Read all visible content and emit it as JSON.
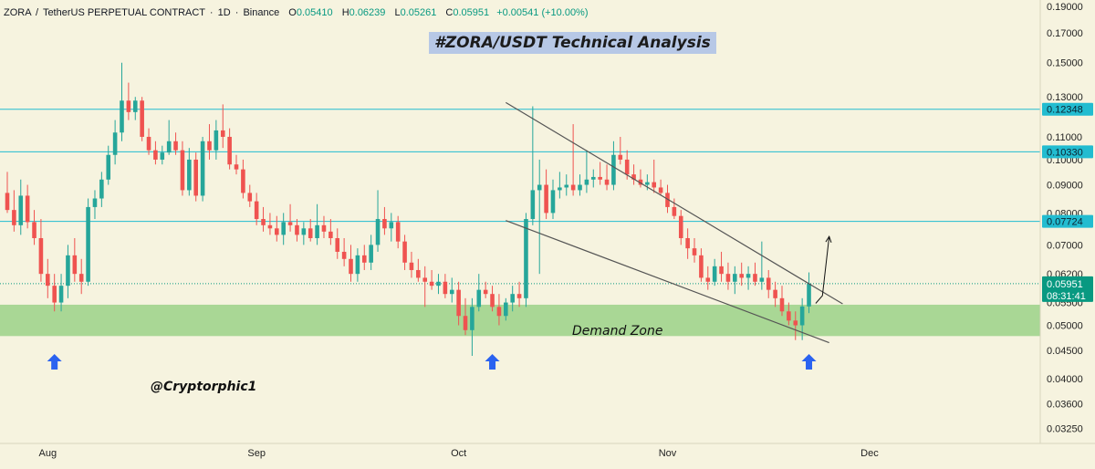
{
  "header": {
    "symbol": "ZORA",
    "pair": "TetherUS PERPETUAL CONTRACT",
    "interval": "1D",
    "exchange": "Binance",
    "ohlc": [
      {
        "label": "O",
        "value": "0.05410"
      },
      {
        "label": "H",
        "value": "0.06239"
      },
      {
        "label": "L",
        "value": "0.05261"
      },
      {
        "label": "C",
        "value": "0.05951"
      }
    ],
    "change": "+0.00541 (+10.00%)"
  },
  "title": "#ZORA/USDT Technical Analysis",
  "watermark": "@Cryptorphic1",
  "demand_zone_label": "Demand Zone",
  "colors": {
    "background": "#f6f3df",
    "bull": "#26a69a",
    "bear": "#ef5350",
    "level_line": "#22bcd0",
    "level_tag": "#22bcd0",
    "price_tag": "#089981",
    "demand_zone": "#a4d590",
    "trendline": "#555555",
    "arrow_marker": "#2a62f0"
  },
  "price_tag": {
    "value": "0.05951",
    "countdown": "08:31:41"
  },
  "chart_data": {
    "type": "candlestick",
    "y_scale": "log",
    "ylim": [
      0.0305,
      0.195
    ],
    "yticks": [
      "0.19000",
      "0.17000",
      "0.15000",
      "0.13000",
      "0.11000",
      "0.10000",
      "0.09000",
      "0.08000",
      "0.07000",
      "0.06200",
      "0.05500",
      "0.05000",
      "0.04500",
      "0.04000",
      "0.03600",
      "0.03250"
    ],
    "x_labels": [
      {
        "label": "Aug",
        "date": "2025-08-01"
      },
      {
        "label": "Sep",
        "date": "2025-09-01"
      },
      {
        "label": "Oct",
        "date": "2025-10-01"
      },
      {
        "label": "Nov",
        "date": "2025-11-01"
      },
      {
        "label": "Dec",
        "date": "2025-12-01"
      }
    ],
    "x_range": [
      "2025-07-26",
      "2025-12-22"
    ],
    "levels": [
      {
        "value": 0.12348,
        "label": "0.12348"
      },
      {
        "value": 0.1033,
        "label": "0.10330"
      },
      {
        "value": 0.07724,
        "label": "0.07724"
      }
    ],
    "current_price": 0.05951,
    "demand_zone": [
      0.0478,
      0.0545
    ],
    "trendlines": [
      {
        "from": [
          "2025-10-08",
          0.127
        ],
        "to": [
          "2025-11-27",
          0.0547
        ]
      },
      {
        "from": [
          "2025-10-08",
          0.0775
        ],
        "to": [
          "2025-11-25",
          0.0465
        ]
      }
    ],
    "projection": [
      [
        "2025-11-23",
        0.0548
      ],
      [
        "2025-11-24",
        0.0566
      ],
      [
        "2025-11-25",
        0.0725
      ]
    ],
    "up_arrows": [
      "2025-08-02",
      "2025-10-06",
      "2025-11-22"
    ],
    "candles": [
      {
        "d": "2025-07-26",
        "o": 0.087,
        "h": 0.095,
        "l": 0.08,
        "c": 0.081
      },
      {
        "d": "2025-07-27",
        "o": 0.081,
        "h": 0.088,
        "l": 0.074,
        "c": 0.076
      },
      {
        "d": "2025-07-28",
        "o": 0.076,
        "h": 0.092,
        "l": 0.073,
        "c": 0.086
      },
      {
        "d": "2025-07-29",
        "o": 0.086,
        "h": 0.09,
        "l": 0.075,
        "c": 0.077
      },
      {
        "d": "2025-07-30",
        "o": 0.077,
        "h": 0.081,
        "l": 0.07,
        "c": 0.072
      },
      {
        "d": "2025-07-31",
        "o": 0.072,
        "h": 0.078,
        "l": 0.06,
        "c": 0.062
      },
      {
        "d": "2025-08-01",
        "o": 0.062,
        "h": 0.066,
        "l": 0.056,
        "c": 0.059
      },
      {
        "d": "2025-08-02",
        "o": 0.059,
        "h": 0.062,
        "l": 0.053,
        "c": 0.055
      },
      {
        "d": "2025-08-03",
        "o": 0.055,
        "h": 0.062,
        "l": 0.053,
        "c": 0.059
      },
      {
        "d": "2025-08-04",
        "o": 0.059,
        "h": 0.07,
        "l": 0.056,
        "c": 0.067
      },
      {
        "d": "2025-08-05",
        "o": 0.067,
        "h": 0.072,
        "l": 0.06,
        "c": 0.062
      },
      {
        "d": "2025-08-06",
        "o": 0.062,
        "h": 0.066,
        "l": 0.057,
        "c": 0.06
      },
      {
        "d": "2025-08-07",
        "o": 0.06,
        "h": 0.085,
        "l": 0.059,
        "c": 0.082
      },
      {
        "d": "2025-08-08",
        "o": 0.082,
        "h": 0.088,
        "l": 0.078,
        "c": 0.085
      },
      {
        "d": "2025-08-09",
        "o": 0.085,
        "h": 0.095,
        "l": 0.082,
        "c": 0.092
      },
      {
        "d": "2025-08-10",
        "o": 0.092,
        "h": 0.106,
        "l": 0.09,
        "c": 0.102
      },
      {
        "d": "2025-08-11",
        "o": 0.102,
        "h": 0.118,
        "l": 0.098,
        "c": 0.112
      },
      {
        "d": "2025-08-12",
        "o": 0.112,
        "h": 0.15,
        "l": 0.108,
        "c": 0.128
      },
      {
        "d": "2025-08-13",
        "o": 0.128,
        "h": 0.138,
        "l": 0.118,
        "c": 0.122
      },
      {
        "d": "2025-08-14",
        "o": 0.122,
        "h": 0.13,
        "l": 0.118,
        "c": 0.128
      },
      {
        "d": "2025-08-15",
        "o": 0.128,
        "h": 0.13,
        "l": 0.108,
        "c": 0.11
      },
      {
        "d": "2025-08-16",
        "o": 0.11,
        "h": 0.114,
        "l": 0.102,
        "c": 0.104
      },
      {
        "d": "2025-08-17",
        "o": 0.104,
        "h": 0.108,
        "l": 0.098,
        "c": 0.1
      },
      {
        "d": "2025-08-18",
        "o": 0.1,
        "h": 0.106,
        "l": 0.098,
        "c": 0.103
      },
      {
        "d": "2025-08-19",
        "o": 0.103,
        "h": 0.118,
        "l": 0.102,
        "c": 0.108
      },
      {
        "d": "2025-08-20",
        "o": 0.108,
        "h": 0.112,
        "l": 0.102,
        "c": 0.104
      },
      {
        "d": "2025-08-21",
        "o": 0.104,
        "h": 0.108,
        "l": 0.086,
        "c": 0.088
      },
      {
        "d": "2025-08-22",
        "o": 0.088,
        "h": 0.105,
        "l": 0.086,
        "c": 0.1
      },
      {
        "d": "2025-08-23",
        "o": 0.1,
        "h": 0.103,
        "l": 0.084,
        "c": 0.086
      },
      {
        "d": "2025-08-24",
        "o": 0.086,
        "h": 0.11,
        "l": 0.084,
        "c": 0.108
      },
      {
        "d": "2025-08-25",
        "o": 0.108,
        "h": 0.116,
        "l": 0.1,
        "c": 0.104
      },
      {
        "d": "2025-08-26",
        "o": 0.104,
        "h": 0.118,
        "l": 0.1,
        "c": 0.113
      },
      {
        "d": "2025-08-27",
        "o": 0.113,
        "h": 0.126,
        "l": 0.105,
        "c": 0.11
      },
      {
        "d": "2025-08-28",
        "o": 0.11,
        "h": 0.114,
        "l": 0.096,
        "c": 0.098
      },
      {
        "d": "2025-08-29",
        "o": 0.098,
        "h": 0.102,
        "l": 0.094,
        "c": 0.096
      },
      {
        "d": "2025-08-30",
        "o": 0.096,
        "h": 0.1,
        "l": 0.085,
        "c": 0.087
      },
      {
        "d": "2025-08-31",
        "o": 0.087,
        "h": 0.09,
        "l": 0.082,
        "c": 0.084
      },
      {
        "d": "2025-09-01",
        "o": 0.084,
        "h": 0.087,
        "l": 0.076,
        "c": 0.078
      },
      {
        "d": "2025-09-02",
        "o": 0.078,
        "h": 0.082,
        "l": 0.074,
        "c": 0.076
      },
      {
        "d": "2025-09-03",
        "o": 0.076,
        "h": 0.08,
        "l": 0.073,
        "c": 0.075
      },
      {
        "d": "2025-09-04",
        "o": 0.075,
        "h": 0.079,
        "l": 0.071,
        "c": 0.073
      },
      {
        "d": "2025-09-05",
        "o": 0.073,
        "h": 0.08,
        "l": 0.07,
        "c": 0.077
      },
      {
        "d": "2025-09-06",
        "o": 0.077,
        "h": 0.083,
        "l": 0.074,
        "c": 0.076
      },
      {
        "d": "2025-09-07",
        "o": 0.076,
        "h": 0.078,
        "l": 0.071,
        "c": 0.073
      },
      {
        "d": "2025-09-08",
        "o": 0.073,
        "h": 0.077,
        "l": 0.07,
        "c": 0.075
      },
      {
        "d": "2025-09-09",
        "o": 0.075,
        "h": 0.078,
        "l": 0.071,
        "c": 0.072
      },
      {
        "d": "2025-09-10",
        "o": 0.072,
        "h": 0.083,
        "l": 0.07,
        "c": 0.076
      },
      {
        "d": "2025-09-11",
        "o": 0.076,
        "h": 0.079,
        "l": 0.072,
        "c": 0.074
      },
      {
        "d": "2025-09-12",
        "o": 0.074,
        "h": 0.078,
        "l": 0.07,
        "c": 0.072
      },
      {
        "d": "2025-09-13",
        "o": 0.072,
        "h": 0.075,
        "l": 0.066,
        "c": 0.068
      },
      {
        "d": "2025-09-14",
        "o": 0.068,
        "h": 0.072,
        "l": 0.064,
        "c": 0.066
      },
      {
        "d": "2025-09-15",
        "o": 0.066,
        "h": 0.07,
        "l": 0.06,
        "c": 0.062
      },
      {
        "d": "2025-09-16",
        "o": 0.062,
        "h": 0.069,
        "l": 0.06,
        "c": 0.067
      },
      {
        "d": "2025-09-17",
        "o": 0.067,
        "h": 0.07,
        "l": 0.063,
        "c": 0.065
      },
      {
        "d": "2025-09-18",
        "o": 0.065,
        "h": 0.073,
        "l": 0.063,
        "c": 0.07
      },
      {
        "d": "2025-09-19",
        "o": 0.07,
        "h": 0.088,
        "l": 0.068,
        "c": 0.078
      },
      {
        "d": "2025-09-20",
        "o": 0.078,
        "h": 0.082,
        "l": 0.073,
        "c": 0.075
      },
      {
        "d": "2025-09-21",
        "o": 0.075,
        "h": 0.08,
        "l": 0.071,
        "c": 0.077
      },
      {
        "d": "2025-09-22",
        "o": 0.077,
        "h": 0.079,
        "l": 0.069,
        "c": 0.071
      },
      {
        "d": "2025-09-23",
        "o": 0.071,
        "h": 0.073,
        "l": 0.063,
        "c": 0.065
      },
      {
        "d": "2025-09-24",
        "o": 0.065,
        "h": 0.068,
        "l": 0.061,
        "c": 0.063
      },
      {
        "d": "2025-09-25",
        "o": 0.063,
        "h": 0.066,
        "l": 0.06,
        "c": 0.061
      },
      {
        "d": "2025-09-26",
        "o": 0.061,
        "h": 0.064,
        "l": 0.054,
        "c": 0.06
      },
      {
        "d": "2025-09-27",
        "o": 0.06,
        "h": 0.063,
        "l": 0.058,
        "c": 0.059
      },
      {
        "d": "2025-09-28",
        "o": 0.059,
        "h": 0.062,
        "l": 0.057,
        "c": 0.06
      },
      {
        "d": "2025-09-29",
        "o": 0.06,
        "h": 0.062,
        "l": 0.056,
        "c": 0.057
      },
      {
        "d": "2025-09-30",
        "o": 0.057,
        "h": 0.061,
        "l": 0.055,
        "c": 0.058
      },
      {
        "d": "2025-10-01",
        "o": 0.058,
        "h": 0.06,
        "l": 0.05,
        "c": 0.052
      },
      {
        "d": "2025-10-02",
        "o": 0.052,
        "h": 0.056,
        "l": 0.048,
        "c": 0.049
      },
      {
        "d": "2025-10-03",
        "o": 0.049,
        "h": 0.056,
        "l": 0.044,
        "c": 0.054
      },
      {
        "d": "2025-10-04",
        "o": 0.054,
        "h": 0.062,
        "l": 0.053,
        "c": 0.058
      },
      {
        "d": "2025-10-05",
        "o": 0.058,
        "h": 0.06,
        "l": 0.056,
        "c": 0.057
      },
      {
        "d": "2025-10-06",
        "o": 0.057,
        "h": 0.059,
        "l": 0.053,
        "c": 0.054
      },
      {
        "d": "2025-10-07",
        "o": 0.054,
        "h": 0.057,
        "l": 0.05,
        "c": 0.052
      },
      {
        "d": "2025-10-08",
        "o": 0.052,
        "h": 0.056,
        "l": 0.051,
        "c": 0.055
      },
      {
        "d": "2025-10-09",
        "o": 0.055,
        "h": 0.059,
        "l": 0.053,
        "c": 0.057
      },
      {
        "d": "2025-10-10",
        "o": 0.057,
        "h": 0.06,
        "l": 0.054,
        "c": 0.056
      },
      {
        "d": "2025-10-11",
        "o": 0.056,
        "h": 0.08,
        "l": 0.054,
        "c": 0.078
      },
      {
        "d": "2025-10-12",
        "o": 0.078,
        "h": 0.125,
        "l": 0.076,
        "c": 0.088
      },
      {
        "d": "2025-10-13",
        "o": 0.088,
        "h": 0.1,
        "l": 0.062,
        "c": 0.09
      },
      {
        "d": "2025-10-14",
        "o": 0.09,
        "h": 0.096,
        "l": 0.078,
        "c": 0.08
      },
      {
        "d": "2025-10-15",
        "o": 0.08,
        "h": 0.092,
        "l": 0.078,
        "c": 0.088
      },
      {
        "d": "2025-10-16",
        "o": 0.088,
        "h": 0.095,
        "l": 0.085,
        "c": 0.089
      },
      {
        "d": "2025-10-17",
        "o": 0.089,
        "h": 0.094,
        "l": 0.086,
        "c": 0.09
      },
      {
        "d": "2025-10-18",
        "o": 0.09,
        "h": 0.116,
        "l": 0.086,
        "c": 0.088
      },
      {
        "d": "2025-10-19",
        "o": 0.088,
        "h": 0.094,
        "l": 0.086,
        "c": 0.09
      },
      {
        "d": "2025-10-20",
        "o": 0.09,
        "h": 0.104,
        "l": 0.087,
        "c": 0.092
      },
      {
        "d": "2025-10-21",
        "o": 0.092,
        "h": 0.096,
        "l": 0.089,
        "c": 0.093
      },
      {
        "d": "2025-10-22",
        "o": 0.093,
        "h": 0.099,
        "l": 0.09,
        "c": 0.092
      },
      {
        "d": "2025-10-23",
        "o": 0.092,
        "h": 0.098,
        "l": 0.088,
        "c": 0.09
      },
      {
        "d": "2025-10-24",
        "o": 0.09,
        "h": 0.108,
        "l": 0.088,
        "c": 0.102
      },
      {
        "d": "2025-10-25",
        "o": 0.102,
        "h": 0.11,
        "l": 0.098,
        "c": 0.1
      },
      {
        "d": "2025-10-26",
        "o": 0.1,
        "h": 0.104,
        "l": 0.092,
        "c": 0.094
      },
      {
        "d": "2025-10-27",
        "o": 0.094,
        "h": 0.098,
        "l": 0.09,
        "c": 0.092
      },
      {
        "d": "2025-10-28",
        "o": 0.092,
        "h": 0.096,
        "l": 0.089,
        "c": 0.09
      },
      {
        "d": "2025-10-29",
        "o": 0.09,
        "h": 0.094,
        "l": 0.088,
        "c": 0.091
      },
      {
        "d": "2025-10-30",
        "o": 0.091,
        "h": 0.1,
        "l": 0.087,
        "c": 0.089
      },
      {
        "d": "2025-10-31",
        "o": 0.089,
        "h": 0.092,
        "l": 0.086,
        "c": 0.087
      },
      {
        "d": "2025-11-01",
        "o": 0.087,
        "h": 0.09,
        "l": 0.08,
        "c": 0.082
      },
      {
        "d": "2025-11-02",
        "o": 0.082,
        "h": 0.085,
        "l": 0.078,
        "c": 0.079
      },
      {
        "d": "2025-11-03",
        "o": 0.079,
        "h": 0.081,
        "l": 0.07,
        "c": 0.072
      },
      {
        "d": "2025-11-04",
        "o": 0.072,
        "h": 0.075,
        "l": 0.066,
        "c": 0.069
      },
      {
        "d": "2025-11-05",
        "o": 0.069,
        "h": 0.072,
        "l": 0.065,
        "c": 0.067
      },
      {
        "d": "2025-11-06",
        "o": 0.067,
        "h": 0.069,
        "l": 0.06,
        "c": 0.061
      },
      {
        "d": "2025-11-07",
        "o": 0.061,
        "h": 0.064,
        "l": 0.058,
        "c": 0.06
      },
      {
        "d": "2025-11-08",
        "o": 0.06,
        "h": 0.066,
        "l": 0.059,
        "c": 0.064
      },
      {
        "d": "2025-11-09",
        "o": 0.064,
        "h": 0.068,
        "l": 0.06,
        "c": 0.062
      },
      {
        "d": "2025-11-10",
        "o": 0.062,
        "h": 0.065,
        "l": 0.058,
        "c": 0.06
      },
      {
        "d": "2025-11-11",
        "o": 0.06,
        "h": 0.064,
        "l": 0.057,
        "c": 0.062
      },
      {
        "d": "2025-11-12",
        "o": 0.062,
        "h": 0.065,
        "l": 0.059,
        "c": 0.061
      },
      {
        "d": "2025-11-13",
        "o": 0.061,
        "h": 0.064,
        "l": 0.058,
        "c": 0.062
      },
      {
        "d": "2025-11-14",
        "o": 0.062,
        "h": 0.065,
        "l": 0.059,
        "c": 0.06
      },
      {
        "d": "2025-11-15",
        "o": 0.06,
        "h": 0.071,
        "l": 0.058,
        "c": 0.061
      },
      {
        "d": "2025-11-16",
        "o": 0.061,
        "h": 0.063,
        "l": 0.056,
        "c": 0.058
      },
      {
        "d": "2025-11-17",
        "o": 0.058,
        "h": 0.06,
        "l": 0.054,
        "c": 0.056
      },
      {
        "d": "2025-11-18",
        "o": 0.056,
        "h": 0.059,
        "l": 0.052,
        "c": 0.053
      },
      {
        "d": "2025-11-19",
        "o": 0.053,
        "h": 0.055,
        "l": 0.05,
        "c": 0.051
      },
      {
        "d": "2025-11-20",
        "o": 0.051,
        "h": 0.053,
        "l": 0.047,
        "c": 0.05
      },
      {
        "d": "2025-11-21",
        "o": 0.05,
        "h": 0.056,
        "l": 0.047,
        "c": 0.0541
      },
      {
        "d": "2025-11-22",
        "o": 0.0541,
        "h": 0.06239,
        "l": 0.05261,
        "c": 0.05951
      }
    ]
  }
}
